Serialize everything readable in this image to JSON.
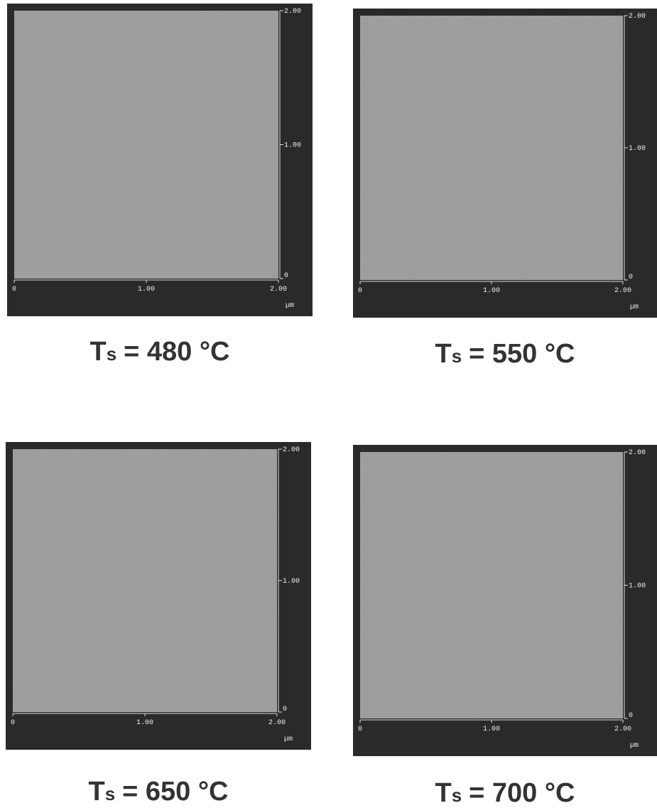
{
  "panels": [
    {
      "x_labels": [
        "0",
        "1.00",
        "2.00"
      ],
      "y_labels": [
        "2.00",
        "1.00",
        "0"
      ],
      "unit": "µm",
      "caption": {
        "symbol": "T",
        "subscript": "s",
        "text": "= 480 °C"
      }
    },
    {
      "x_labels": [
        "0",
        "1.00",
        "2.00"
      ],
      "y_labels": [
        "2.00",
        "1.00",
        "0"
      ],
      "unit": "µm",
      "caption": {
        "symbol": "T",
        "subscript": "s",
        "text": "= 550 °C"
      }
    },
    {
      "x_labels": [
        "0",
        "1.00",
        "2.00"
      ],
      "y_labels": [
        "2.00",
        "1.00",
        "0"
      ],
      "unit": "µm",
      "caption": {
        "symbol": "T",
        "subscript": "s",
        "text": "= 650 °C"
      }
    },
    {
      "x_labels": [
        "0",
        "1.00",
        "2.00"
      ],
      "y_labels": [
        "2.00",
        "1.00",
        "0"
      ],
      "unit": "µm",
      "caption": {
        "symbol": "T",
        "subscript": "s",
        "text": "= 700 °C"
      }
    }
  ]
}
